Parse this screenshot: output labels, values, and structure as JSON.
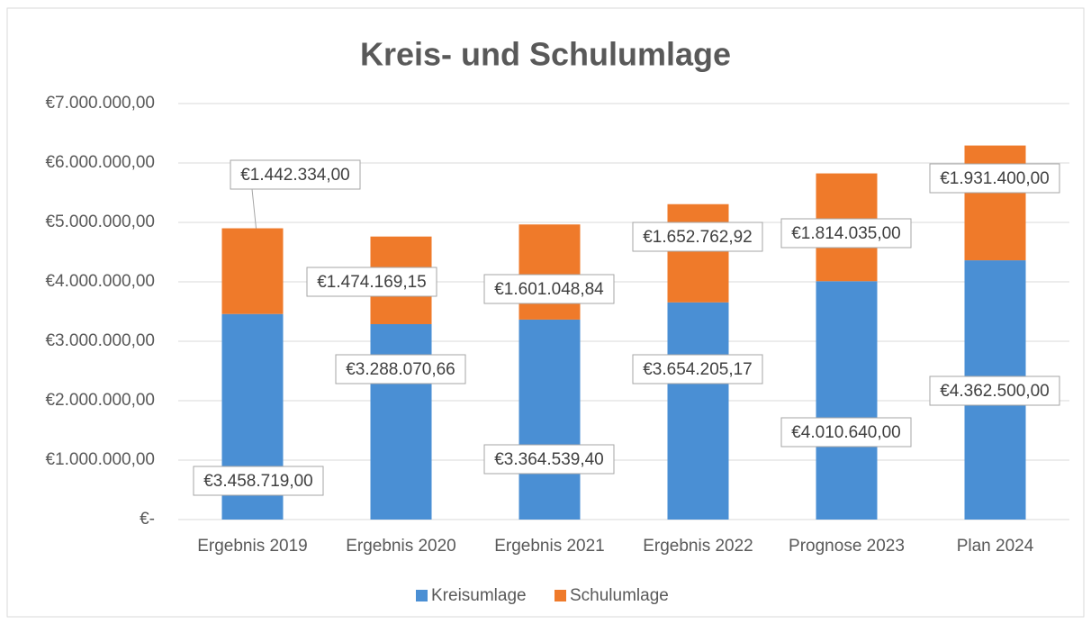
{
  "chart_data": {
    "type": "stacked-bar",
    "title": "Kreis- und Schulumlage",
    "categories": [
      "Ergebnis 2019",
      "Ergebnis 2020",
      "Ergebnis 2021",
      "Ergebnis 2022",
      "Prognose 2023",
      "Plan 2024"
    ],
    "series": [
      {
        "name": "Kreisumlage",
        "color": "#4a8fd4",
        "values": [
          3458719.0,
          3288070.66,
          3364539.4,
          3654205.17,
          4010640.0,
          4362500.0
        ],
        "value_labels": [
          "€3.458.719,00",
          "€3.288.070,66",
          "€3.364.539,40",
          "€3.654.205,17",
          "€4.010.640,00",
          "€4.362.500,00"
        ]
      },
      {
        "name": "Schulumlage",
        "color": "#ef7a2a",
        "values": [
          1442334.0,
          1474169.15,
          1601048.84,
          1652762.92,
          1814035.0,
          1931400.0
        ],
        "value_labels": [
          "€1.442.334,00",
          "€1.474.169,15",
          "€1.601.048,84",
          "€1.652.762,92",
          "€1.814.035,00",
          "€1.931.400,00"
        ]
      }
    ],
    "ylim": [
      0,
      7000000
    ],
    "yticks": [
      {
        "value": 0,
        "label": "€-"
      },
      {
        "value": 1000000,
        "label": "€1.000.000,00"
      },
      {
        "value": 2000000,
        "label": "€2.000.000,00"
      },
      {
        "value": 3000000,
        "label": "€3.000.000,00"
      },
      {
        "value": 4000000,
        "label": "€4.000.000,00"
      },
      {
        "value": 5000000,
        "label": "€5.000.000,00"
      },
      {
        "value": 6000000,
        "label": "€6.000.000,00"
      },
      {
        "value": 7000000,
        "label": "€7.000.000,00"
      }
    ],
    "grid": true,
    "legend": "bottom"
  }
}
